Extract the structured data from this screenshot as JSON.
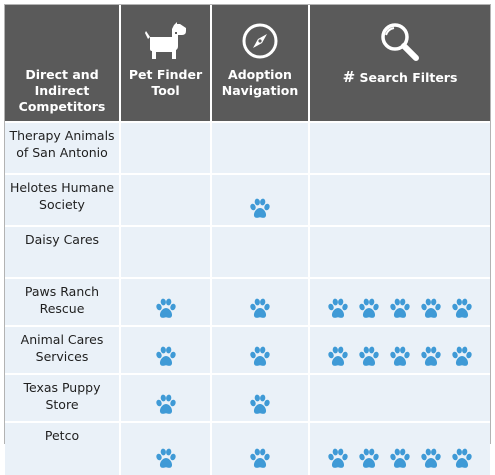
{
  "header": {
    "competitors_label": "Direct and\nIndirect\nCompetitors",
    "col_pet_finder": "Pet Finder\nTool",
    "col_adoption": "Adoption\nNavigation",
    "col_search_hash": "#",
    "col_search_label": " Search Filters",
    "icons": [
      "dog-icon",
      "compass-icon",
      "search-icon"
    ]
  },
  "colors": {
    "header_bg": "#5a5a5a",
    "row_bg": "#eaf1f8",
    "paw": "#3f9ad6"
  },
  "rows": [
    {
      "name": "Therapy Animals\nof San Antonio",
      "pet_finder": 0,
      "adoption": 0,
      "search_filters": 0
    },
    {
      "name": "Helotes Humane\nSociety",
      "pet_finder": 0,
      "adoption": 1,
      "search_filters": 0
    },
    {
      "name": "Daisy Cares",
      "pet_finder": 0,
      "adoption": 0,
      "search_filters": 0
    },
    {
      "name": "Paws Ranch\nRescue",
      "pet_finder": 1,
      "adoption": 1,
      "search_filters": 5
    },
    {
      "name": "Animal Cares\nServices",
      "pet_finder": 1,
      "adoption": 1,
      "search_filters": 5
    },
    {
      "name": "Texas Puppy\nStore",
      "pet_finder": 1,
      "adoption": 1,
      "search_filters": 0
    },
    {
      "name": "Petco",
      "pet_finder": 1,
      "adoption": 1,
      "search_filters": 5
    }
  ]
}
